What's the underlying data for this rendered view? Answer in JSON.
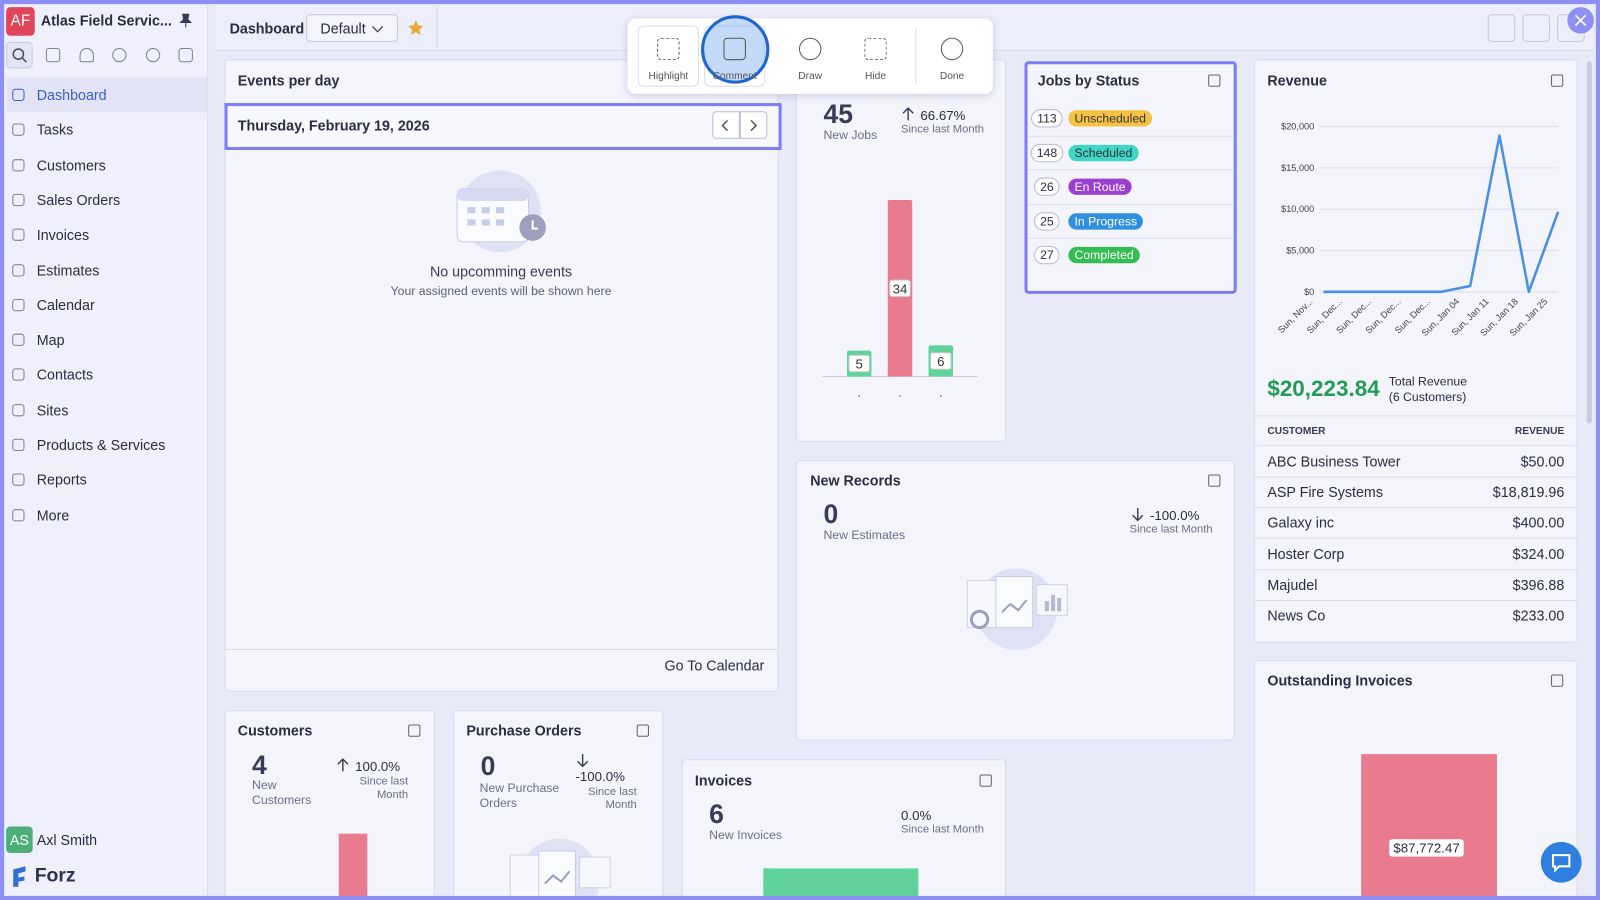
{
  "app": {
    "initials": "AF",
    "name": "Atlas Field Servic..."
  },
  "nav": [
    "Dashboard",
    "Tasks",
    "Customers",
    "Sales Orders",
    "Invoices",
    "Estimates",
    "Calendar",
    "Map",
    "Contacts",
    "Sites",
    "Products & Services",
    "Reports",
    "More"
  ],
  "user": {
    "initials": "AS",
    "name": "Axl Smith"
  },
  "brand": "Forz",
  "header": {
    "title": "Dashboard",
    "view": "Default"
  },
  "toolbar": [
    "Highlight",
    "Comment",
    "Draw",
    "Hide",
    "Done"
  ],
  "events": {
    "title": "Events per day",
    "date": "Thursday, February 19, 2026",
    "empty_title": "No upcomming events",
    "empty_text": "Your assigned events will be shown here",
    "link": "Go To Calendar"
  },
  "jobs": {
    "count": 45,
    "label": "New Jobs",
    "change": "66.67%",
    "since": "Since last Month",
    "chart": {
      "type": "bar",
      "categories": [
        null,
        null,
        null
      ],
      "values": [
        5,
        34,
        6
      ],
      "colors": [
        "#5fd39a",
        "#ea7b8f",
        "#5fd39a"
      ]
    }
  },
  "jobs_by_status": {
    "title": "Jobs by Status",
    "rows": [
      {
        "count": 113,
        "label": "Unscheduled",
        "color": "#f5c244"
      },
      {
        "count": 148,
        "label": "Scheduled",
        "color": "#3fd6c6"
      },
      {
        "count": 26,
        "label": "En Route",
        "color": "#9a3fd0"
      },
      {
        "count": 25,
        "label": "In Progress",
        "color": "#2f8fe0"
      },
      {
        "count": 27,
        "label": "Completed",
        "color": "#33bd52"
      }
    ]
  },
  "revenue": {
    "title": "Revenue",
    "chart": {
      "type": "line",
      "categories": [
        "Sun, Nov...",
        "Sun, Dec...",
        "Sun, Dec...",
        "Sun, Dec...",
        "Sun, Dec...",
        "Sun, Jan 04",
        "Sun, Jan 11",
        "Sun, Jan 18",
        "Sun, Jan 25"
      ],
      "values": [
        0,
        0,
        0,
        0,
        0,
        700,
        18900,
        0,
        9700
      ],
      "color": "#4a8fe6",
      "ylim": [
        0,
        20000
      ],
      "yticks": [
        {
          "value": 0,
          "label": "$0"
        },
        {
          "value": 5000,
          "label": "$5,000"
        },
        {
          "value": 10000,
          "label": "$10,000"
        },
        {
          "value": 15000,
          "label": "$15,000"
        },
        {
          "value": 20000,
          "label": "$20,000"
        }
      ],
      "grid": true
    },
    "total": "$20,223.84",
    "total_label": "Total Revenue",
    "total_sub": "(6 Customers)",
    "table": {
      "columns": [
        "CUSTOMER",
        "REVENUE"
      ],
      "rows": [
        [
          "ABC Business Tower",
          "$50.00"
        ],
        [
          "ASP Fire Systems",
          "$18,819.96"
        ],
        [
          "Galaxy inc",
          "$400.00"
        ],
        [
          "Hoster Corp",
          "$324.00"
        ],
        [
          "Majudel",
          "$396.88"
        ],
        [
          "News Co",
          "$233.00"
        ]
      ]
    }
  },
  "new_records": {
    "title": "New Records",
    "count": 0,
    "label": "New Estimates",
    "change": "-100.0%",
    "since": "Since last Month"
  },
  "customers": {
    "title": "Customers",
    "count": 4,
    "label_1": "New",
    "label_2": "Customers",
    "change": "100.0%",
    "since_1": "Since last",
    "since_2": "Month"
  },
  "purchase_orders": {
    "title": "Purchase Orders",
    "count": 0,
    "label_1": "New Purchase",
    "label_2": "Orders",
    "change": "-100.0%",
    "since_1": "Since last",
    "since_2": "Month"
  },
  "invoices": {
    "title": "Invoices",
    "count": 6,
    "label": "New Invoices",
    "change": "0.0%",
    "since": "Since last Month"
  },
  "outstanding": {
    "title": "Outstanding Invoices",
    "value_label": "$87,772.47"
  }
}
